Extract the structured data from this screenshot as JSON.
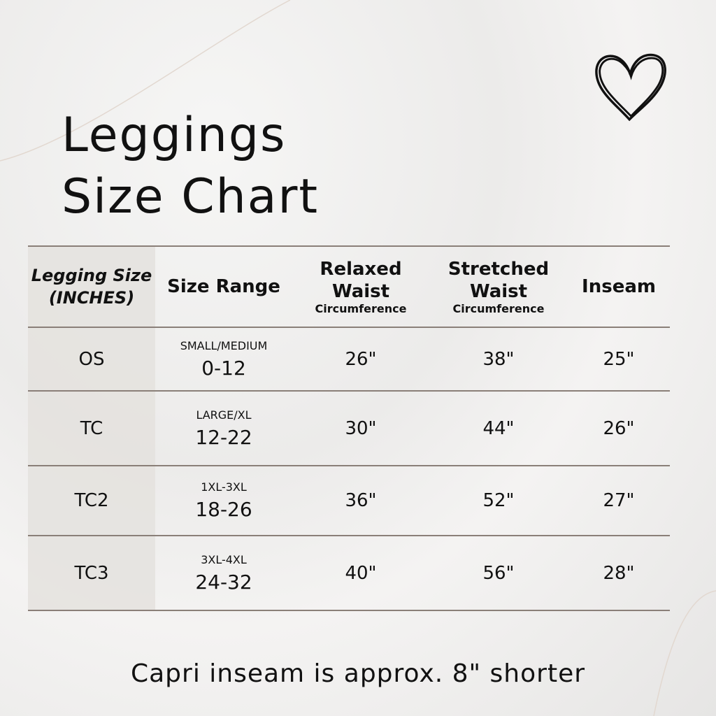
{
  "title_line1": "Leggings",
  "title_line2": "Size Chart",
  "decor_icon": "heart-icon",
  "headers": [
    {
      "main": "Legging Size (INCHES)",
      "sub": ""
    },
    {
      "main": "Size Range",
      "sub": ""
    },
    {
      "main": "Relaxed Waist",
      "sub": "Circumference"
    },
    {
      "main": "Stretched Waist",
      "sub": "Circumference"
    },
    {
      "main": "Inseam",
      "sub": ""
    }
  ],
  "rows": [
    {
      "size": "OS",
      "range_label": "SMALL/MEDIUM",
      "range": "0-12",
      "relaxed": "26\"",
      "stretched": "38\"",
      "inseam": "25\""
    },
    {
      "size": "TC",
      "range_label": "LARGE/XL",
      "range": "12-22",
      "relaxed": "30\"",
      "stretched": "44\"",
      "inseam": "26\""
    },
    {
      "size": "TC2",
      "range_label": "1XL-3XL",
      "range": "18-26",
      "relaxed": "36\"",
      "stretched": "52\"",
      "inseam": "27\""
    },
    {
      "size": "TC3",
      "range_label": "3XL-4XL",
      "range": "24-32",
      "relaxed": "40\"",
      "stretched": "56\"",
      "inseam": "28\""
    }
  ],
  "note": "Capri inseam is approx. 8\" shorter"
}
